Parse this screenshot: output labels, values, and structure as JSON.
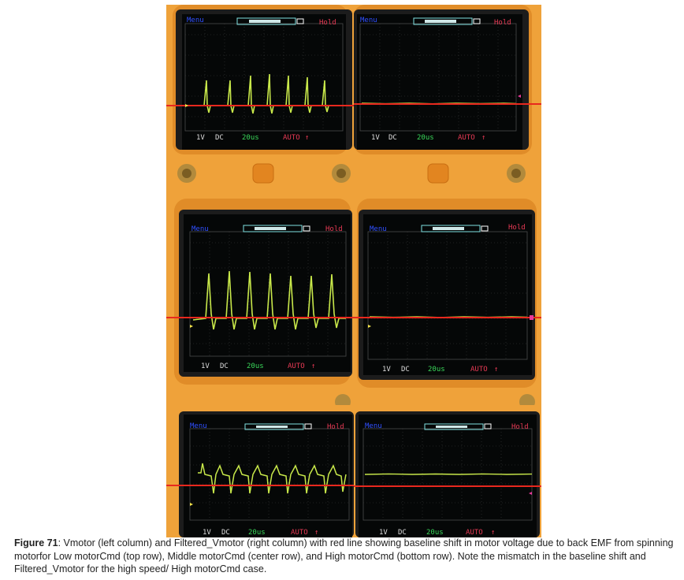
{
  "figure": {
    "label": "Figure 71",
    "caption_text": ": Vmotor (left column) and Filtered_Vmotor (right column) with red line showing baseline shift in motor voltage due to back EMF from spinning motorfor Low motorCmd (top row), Middle motorCmd (center row), and High motorCmd (bottom row). Note the mismatch in the baseline shift and Filtered_Vmotor for the high speed/ High motorCmd case."
  },
  "scope": {
    "menu": "Menu",
    "hold": "Hold",
    "volt": "1V",
    "coupling": "DC",
    "time": "20us",
    "trigger": "AUTO",
    "trigger_icon": "↑"
  },
  "colors": {
    "housing": "#efa23a",
    "screen": "#050707",
    "trace": "#c8e84a",
    "baseline": "#e8281e",
    "menu_text": "#3050ff",
    "hold_text": "#e83a55",
    "status_green": "#3ad85a"
  },
  "rows": [
    {
      "row": "top",
      "motorCmd": "Low",
      "left": "Vmotor",
      "right": "Filtered_Vmotor"
    },
    {
      "row": "center",
      "motorCmd": "Middle",
      "left": "Vmotor",
      "right": "Filtered_Vmotor"
    },
    {
      "row": "bottom",
      "motorCmd": "High",
      "left": "Vmotor",
      "right": "Filtered_Vmotor"
    }
  ]
}
